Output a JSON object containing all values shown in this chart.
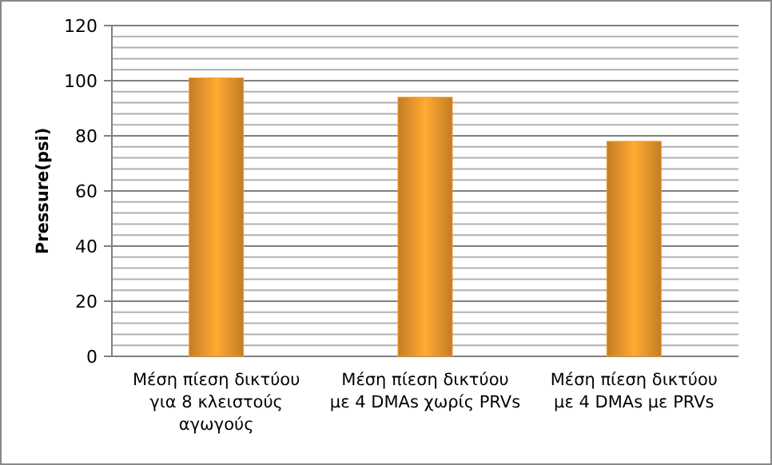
{
  "chart_data": {
    "type": "bar",
    "ylabel": "Pressure(psi)",
    "categories": [
      "Μέση πίεση δικτύου για 8 κλειστούς αγωγούς",
      "Μέση πίεση δικτύου με 4 DMAs χωρίς PRVs",
      "Μέση πίεση δικτύου με 4 DMAs με PRVs"
    ],
    "values": [
      101,
      94,
      78
    ],
    "color": "#f39a2e",
    "ylim": [
      0,
      120
    ],
    "yticks": [
      0,
      {
        "value": 4,
        "label": null
      },
      {
        "value": 8,
        "label": null
      },
      {
        "value": 12,
        "label": null
      },
      {
        "value": 16,
        "label": null
      },
      20,
      {
        "value": 24,
        "label": null
      },
      {
        "value": 28,
        "label": null
      },
      {
        "value": 32,
        "label": null
      },
      {
        "value": 36,
        "label": null
      },
      40,
      {
        "value": 44,
        "label": null
      },
      {
        "value": 48,
        "label": null
      },
      {
        "value": 52,
        "label": null
      },
      {
        "value": 56,
        "label": null
      },
      60,
      {
        "value": 64,
        "label": null
      },
      {
        "value": 68,
        "label": null
      },
      {
        "value": 72,
        "label": null
      },
      {
        "value": 76,
        "label": null
      },
      80,
      {
        "value": 84,
        "label": null
      },
      {
        "value": 88,
        "label": null
      },
      {
        "value": 92,
        "label": null
      },
      {
        "value": 96,
        "label": null
      },
      100,
      {
        "value": 104,
        "label": null
      },
      {
        "value": 108,
        "label": null
      },
      {
        "value": 112,
        "label": null
      },
      {
        "value": 116,
        "label": null
      },
      120
    ],
    "grid": true
  }
}
